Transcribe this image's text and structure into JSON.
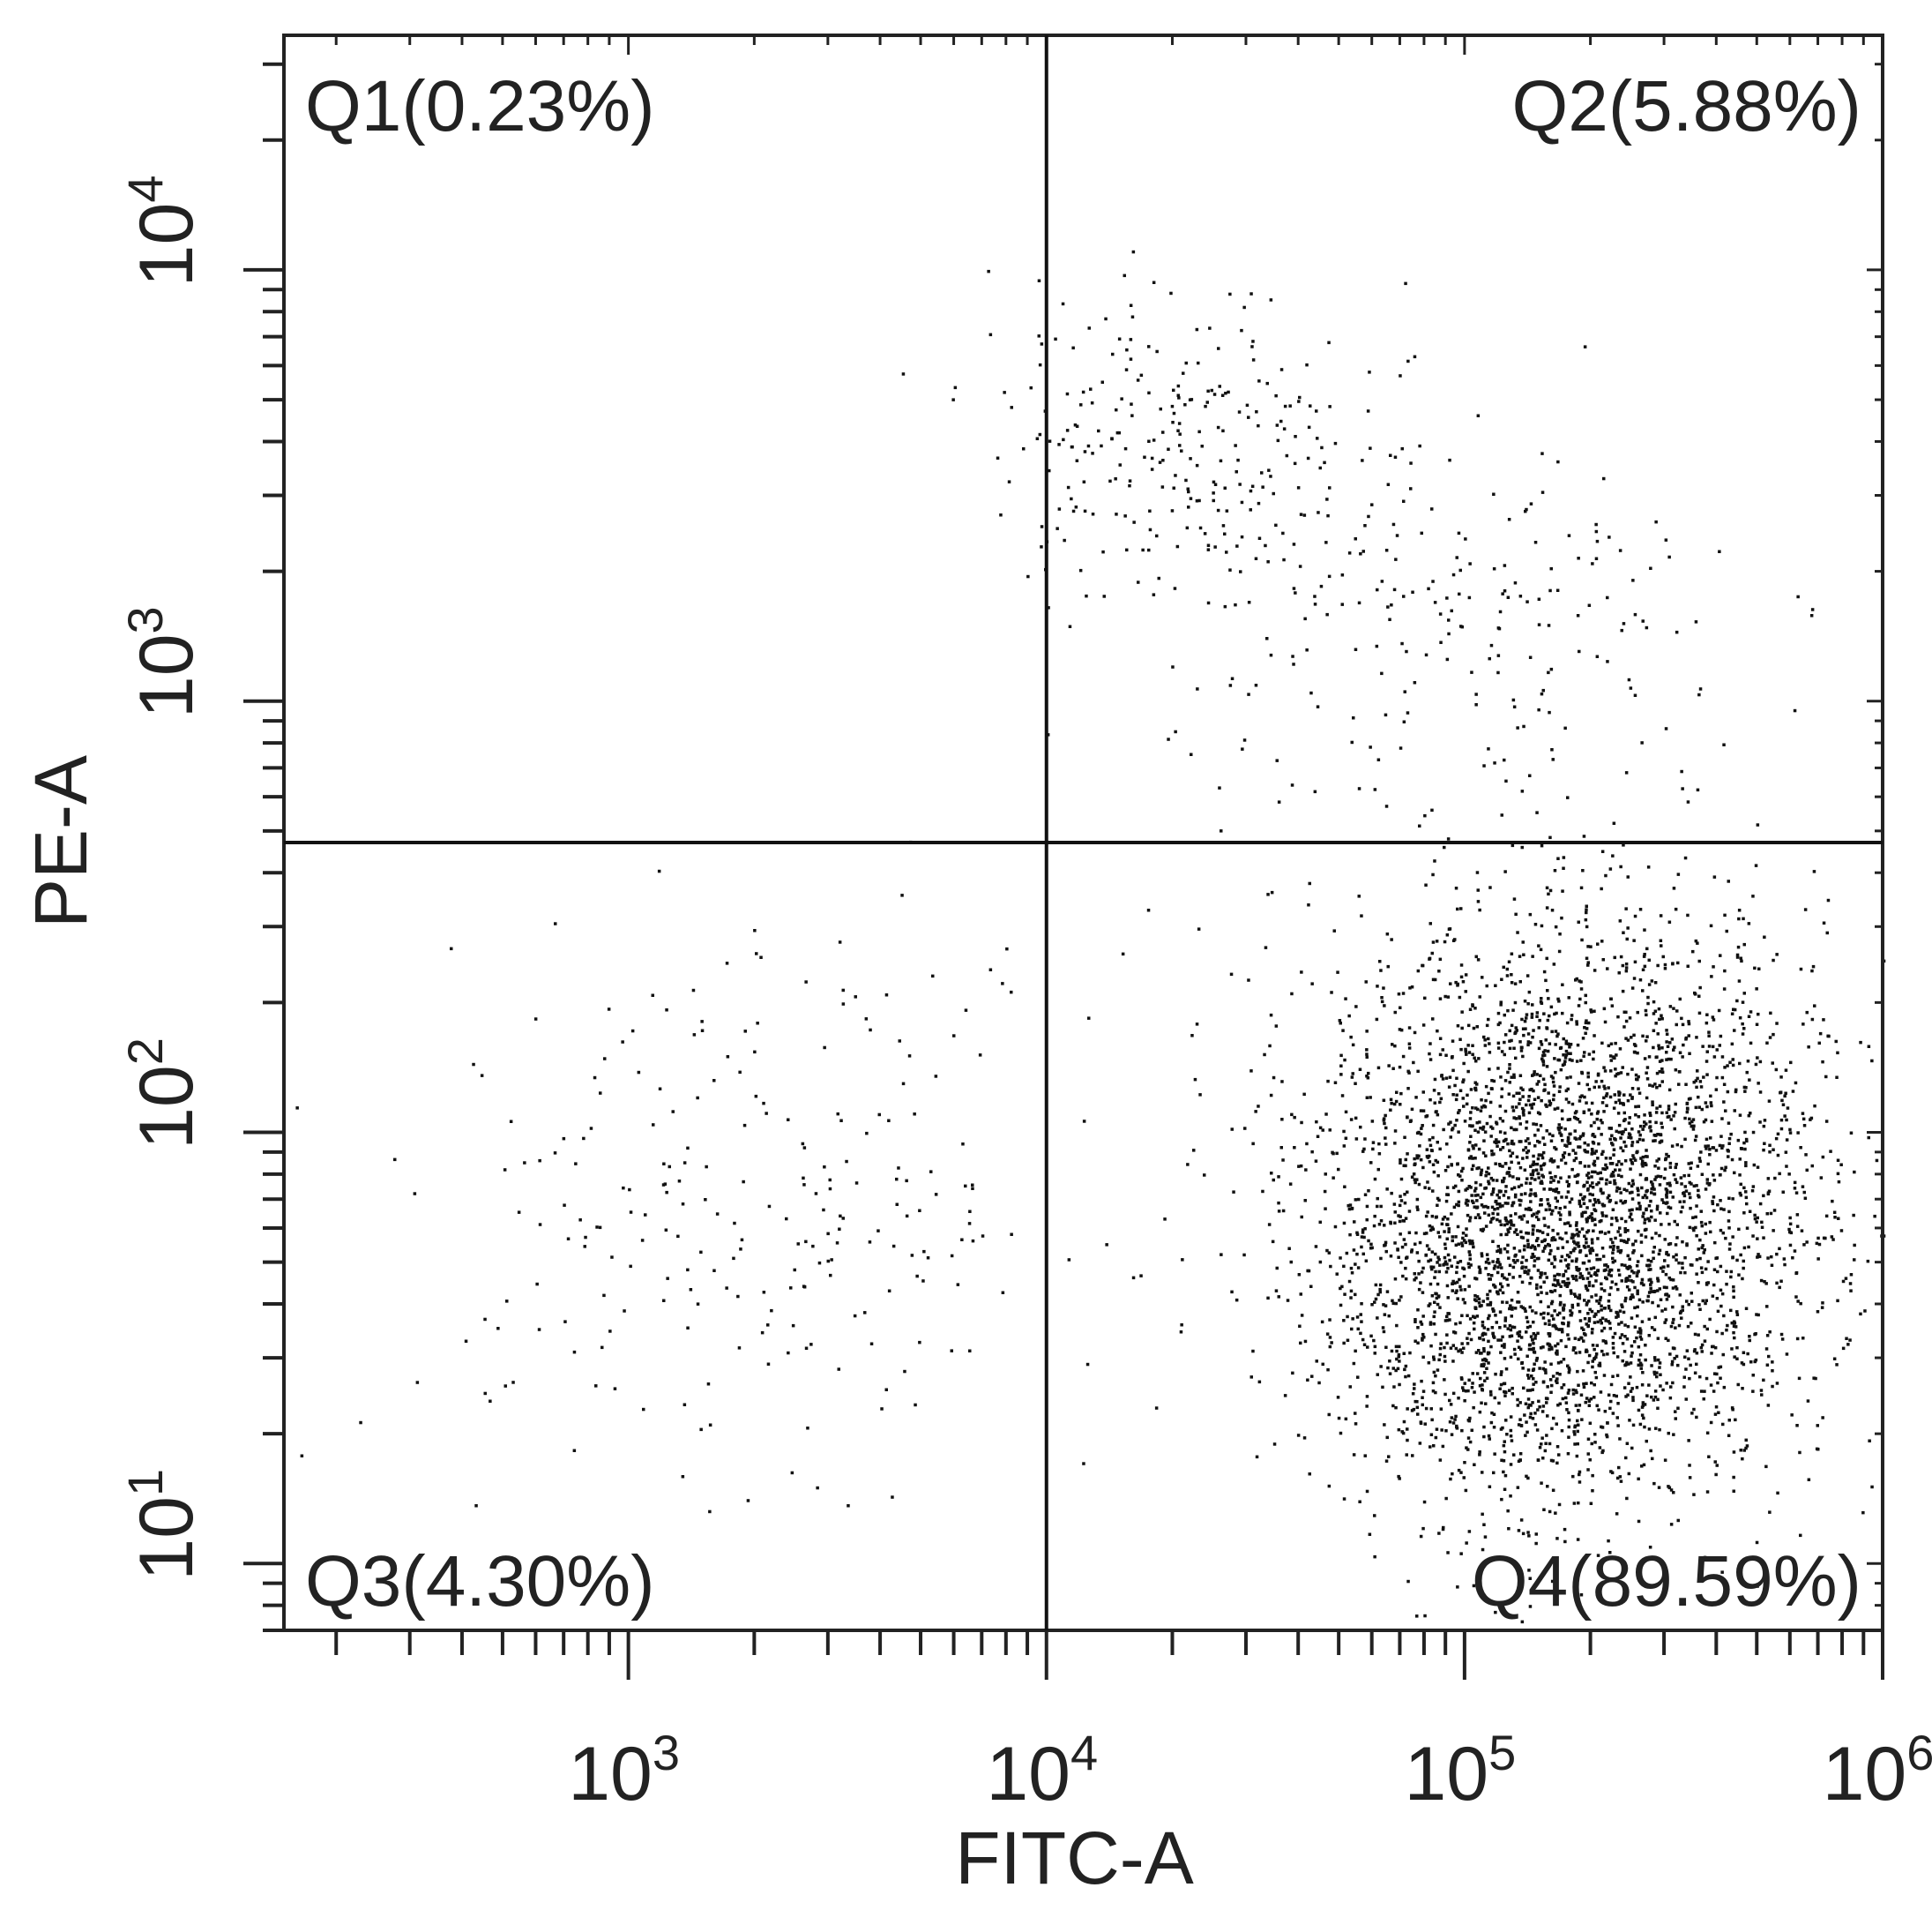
{
  "chart_data": {
    "type": "scatter",
    "xlabel": "FITC-A",
    "ylabel": "PE-A",
    "x_scale": "log",
    "y_scale": "log",
    "xlim": [
      150,
      1000000
    ],
    "ylim": [
      7,
      35000
    ],
    "x_ticks": [
      {
        "value": 1000,
        "base": "10",
        "exp": "3"
      },
      {
        "value": 10000,
        "base": "10",
        "exp": "4"
      },
      {
        "value": 100000,
        "base": "10",
        "exp": "5"
      },
      {
        "value": 1000000,
        "base": "10",
        "exp": "6"
      }
    ],
    "y_ticks": [
      {
        "value": 10,
        "base": "10",
        "exp": "1"
      },
      {
        "value": 100,
        "base": "10",
        "exp": "2"
      },
      {
        "value": 1000,
        "base": "10",
        "exp": "3"
      },
      {
        "value": 10000,
        "base": "10",
        "exp": "4"
      }
    ],
    "gates": {
      "x": 10000,
      "y": 470
    },
    "quadrants": [
      {
        "id": "Q1",
        "label": "Q1(0.23%)",
        "percent": 0.23,
        "position": "top-left"
      },
      {
        "id": "Q2",
        "label": "Q2(5.88%)",
        "percent": 5.88,
        "position": "top-right"
      },
      {
        "id": "Q3",
        "label": "Q3(4.30%)",
        "percent": 4.3,
        "position": "bottom-left"
      },
      {
        "id": "Q4",
        "label": "Q4(89.59%)",
        "percent": 89.59,
        "position": "bottom-right"
      }
    ],
    "populations": [
      {
        "name": "Q4",
        "center_x": 180000,
        "center_y": 70,
        "spread_x": 0.3,
        "spread_y": 0.32,
        "count": 3600
      },
      {
        "name": "Q4",
        "center_x": 130000,
        "center_y": 35,
        "spread_x": 0.22,
        "spread_y": 0.22,
        "count": 600
      },
      {
        "name": "Q2",
        "center_x": 20000,
        "center_y": 4000,
        "spread_x": 0.22,
        "spread_y": 0.18,
        "count": 260
      },
      {
        "name": "Q2",
        "center_x": 100000,
        "center_y": 1400,
        "spread_x": 0.35,
        "spread_y": 0.25,
        "count": 220
      },
      {
        "name": "Q3",
        "center_x": 2000,
        "center_y": 70,
        "spread_x": 0.45,
        "spread_y": 0.3,
        "count": 260
      }
    ],
    "grid": false,
    "legend": "none",
    "point_color": "#111111",
    "axis_color": "#222222"
  }
}
